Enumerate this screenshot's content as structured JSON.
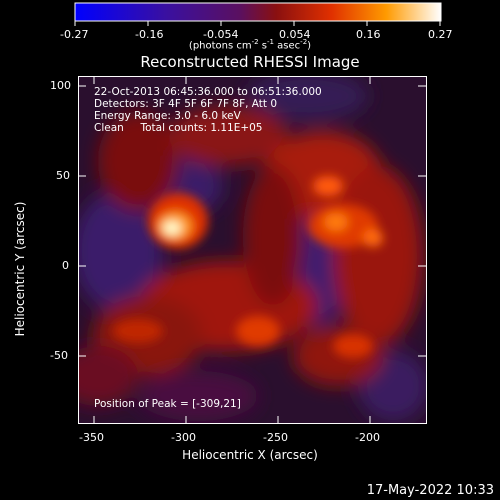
{
  "colorbar": {
    "tick_labels": [
      "-0.27",
      "-0.16",
      "-0.054",
      "0.054",
      "0.16",
      "0.27"
    ],
    "units_main": "(photons cm",
    "units_exp1": "-2",
    "units_mid": " s",
    "units_exp2": "-1",
    "units_end": " asec",
    "units_exp3": "-2",
    "units_close": ")"
  },
  "plot": {
    "title": "Reconstructed RHESSI Image",
    "info_line1": "22-Oct-2013 06:45:36.000 to 06:51:36.000",
    "info_line2": "Detectors: 3F 4F 5F 6F 7F 8F, Att 0",
    "info_line3": "Energy Range: 3.0 - 6.0 keV",
    "info_line4": "Clean     Total counts: 1.11E+05",
    "peak_text": "Position of Peak = [-309,21]",
    "xlabel": "Heliocentric X (arcsec)",
    "ylabel": "Heliocentric Y (arcsec)",
    "x_ticks": [
      "-350",
      "-300",
      "-250",
      "-200"
    ],
    "y_ticks": [
      "100",
      "50",
      "0",
      "-50"
    ]
  },
  "timestamp": "17-May-2022 10:33"
}
